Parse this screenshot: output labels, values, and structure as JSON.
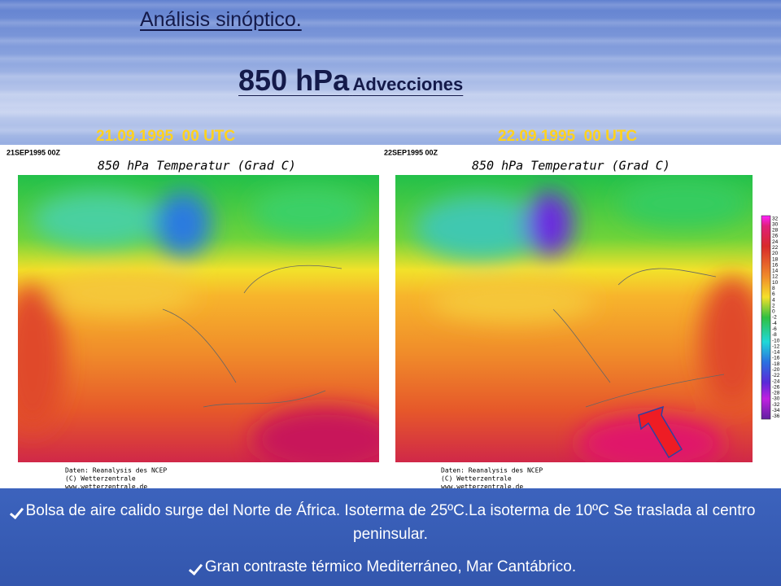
{
  "title": "Análisis sinóptico.",
  "subtitle": {
    "main": "850 hPa",
    "sub": "Advecciones"
  },
  "panels": [
    {
      "date": "21.09.1995  00 UTC",
      "stamp": "21SEP1995 00Z",
      "map_title": "850 hPa Temperatur (Grad C)",
      "credits": [
        "Daten: Reanalysis des NCEP",
        "(C) Wetterzentrale",
        "www.wetterzentrale.de"
      ]
    },
    {
      "date": "22.09.1995  00 UTC",
      "stamp": "22SEP1995 00Z",
      "map_title": "850 hPa Temperatur (Grad C)",
      "credits": [
        "Daten: Reanalysis des NCEP",
        "(C) Wetterzentrale",
        "www.wetterzentrale.de"
      ]
    }
  ],
  "legend": [
    "32",
    "30",
    "28",
    "26",
    "24",
    "22",
    "20",
    "18",
    "16",
    "14",
    "12",
    "10",
    "8",
    "6",
    "4",
    "2",
    "0",
    "-2",
    "-4",
    "-6",
    "-8",
    "-10",
    "-12",
    "-14",
    "-16",
    "-18",
    "-20",
    "-22",
    "-24",
    "-26",
    "-28",
    "-30",
    "-32",
    "-34",
    "-36"
  ],
  "bullets": [
    "Bolsa de aire calido surge del Norte de África. Isoterma de 25ºC.La isoterma de 10ºC Se traslada al centro peninsular.",
    "Gran contraste térmico Mediterráneo, Mar Cantábrico."
  ]
}
